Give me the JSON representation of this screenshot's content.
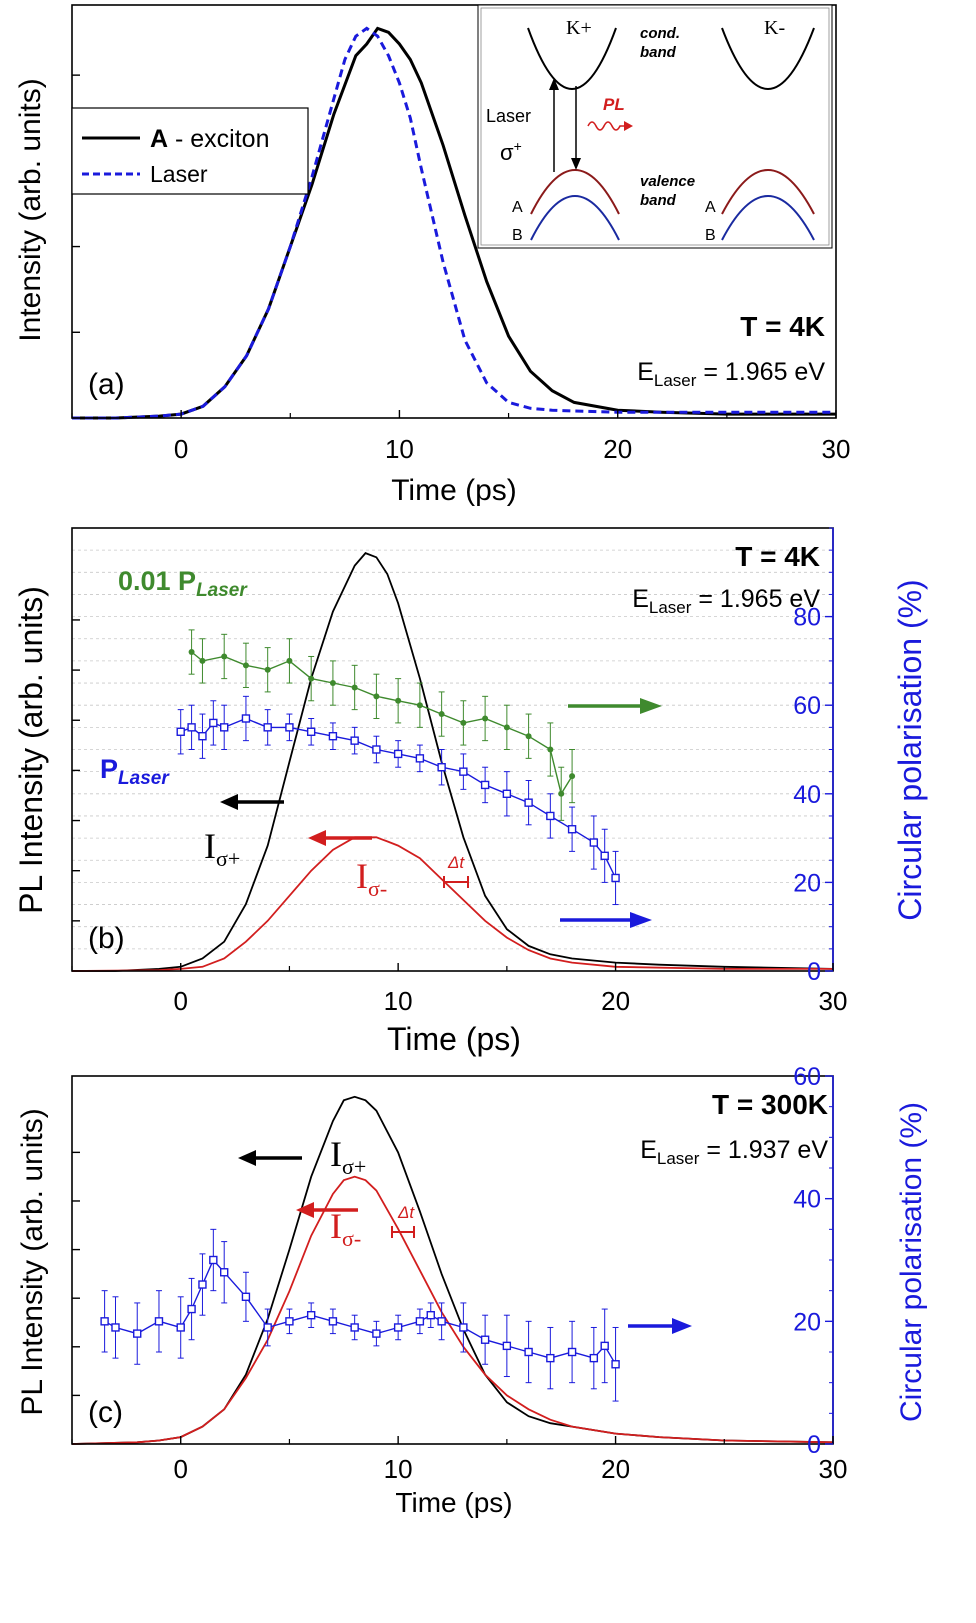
{
  "chart_data": [
    {
      "panel": "a",
      "type": "line",
      "label": "(a)",
      "xlabel": "Time (ps)",
      "ylabel": "Intensity (arb. units)",
      "xlim": [
        -5,
        30
      ],
      "ylim": [
        0,
        1.06
      ],
      "xticks": [
        0,
        10,
        20,
        30
      ],
      "xtick_labels": [
        "0",
        "10",
        "20",
        "30"
      ],
      "temperature": "T = 4K",
      "energy_prefix": "E",
      "energy_sub": "Laser",
      "energy_value": " = 1.965 eV",
      "legend": {
        "items": [
          {
            "bold": "A",
            "text": " - exciton",
            "style": "solid",
            "color": "#000000"
          },
          {
            "bold": "",
            "text": "Laser",
            "style": "dashed",
            "color": "#1a1adc"
          }
        ]
      },
      "series": [
        {
          "name": "A - exciton",
          "color": "#000000",
          "style": "solid",
          "x": [
            -5,
            -3,
            -1,
            0,
            1,
            2,
            3,
            4,
            5,
            6,
            7,
            8,
            8.5,
            9,
            9.5,
            10,
            10.5,
            11,
            12,
            13,
            14,
            15,
            16,
            17,
            18,
            20,
            22,
            25,
            30
          ],
          "y": [
            0.0,
            0.0,
            0.005,
            0.01,
            0.03,
            0.08,
            0.16,
            0.28,
            0.44,
            0.6,
            0.78,
            0.93,
            0.96,
            1.0,
            0.99,
            0.96,
            0.92,
            0.86,
            0.7,
            0.52,
            0.35,
            0.21,
            0.12,
            0.07,
            0.04,
            0.02,
            0.015,
            0.01,
            0.01
          ]
        },
        {
          "name": "Laser",
          "color": "#1a1adc",
          "style": "dashed",
          "x": [
            -5,
            -3,
            -1,
            0,
            1,
            2,
            3,
            4,
            5,
            6,
            7,
            7.5,
            8,
            8.5,
            9,
            9.5,
            10,
            10.5,
            11,
            12,
            13,
            14,
            15,
            16,
            17,
            18,
            20,
            25,
            30
          ],
          "y": [
            0.0,
            0.0,
            0.005,
            0.01,
            0.03,
            0.08,
            0.16,
            0.28,
            0.44,
            0.62,
            0.82,
            0.92,
            0.98,
            1.0,
            0.98,
            0.93,
            0.86,
            0.77,
            0.64,
            0.4,
            0.2,
            0.09,
            0.04,
            0.025,
            0.02,
            0.018,
            0.015,
            0.015,
            0.015
          ]
        }
      ],
      "inset": {
        "k_plus": "K+",
        "k_minus": "K-",
        "cond_band": [
          "cond.",
          "band"
        ],
        "valence_band": [
          "valence",
          "band"
        ],
        "laser": "Laser",
        "sigma": "σ",
        "sigma_sup": "+",
        "pl": "PL",
        "band_a": "A",
        "band_b": "B"
      }
    },
    {
      "panel": "b",
      "type": "line",
      "label": "(b)",
      "xlabel": "Time (ps)",
      "ylabel": "PL Intensity (arb. units)",
      "y2label": "Circular polarisation (%)",
      "xlim": [
        -5,
        30
      ],
      "ylim": [
        0,
        1.06
      ],
      "y2lim": [
        0,
        100
      ],
      "xticks": [
        0,
        10,
        20,
        30
      ],
      "xtick_labels": [
        "0",
        "10",
        "20",
        "30"
      ],
      "y2ticks": [
        0,
        20,
        40,
        60,
        80
      ],
      "y2tick_labels": [
        "0",
        "20",
        "40",
        "60",
        "80"
      ],
      "temperature": "T = 4K",
      "energy_prefix": "E",
      "energy_sub": "Laser",
      "energy_value": " = 1.965 eV",
      "label_green_prefix": "0.01 P",
      "label_green_sub": "Laser",
      "label_blue_prefix": "P",
      "label_blue_sub": "Laser",
      "label_i_plus_main": "I",
      "label_i_plus_sub": "σ+",
      "label_i_minus_main": "I",
      "label_i_minus_sub": "σ-",
      "delta_t": "Δt",
      "series": [
        {
          "name": "I σ+",
          "color": "#000000",
          "axis": "left",
          "x": [
            -5,
            -3,
            -1,
            0,
            1,
            2,
            3,
            4,
            5,
            6,
            7,
            8,
            8.5,
            9,
            9.5,
            10,
            11,
            12,
            13,
            14,
            15,
            16,
            17,
            18,
            20,
            22,
            25,
            30
          ],
          "y": [
            0.0,
            0.0,
            0.005,
            0.01,
            0.03,
            0.07,
            0.16,
            0.3,
            0.5,
            0.7,
            0.86,
            0.97,
            1.0,
            0.99,
            0.95,
            0.88,
            0.7,
            0.5,
            0.32,
            0.18,
            0.1,
            0.06,
            0.04,
            0.03,
            0.02,
            0.015,
            0.01,
            0.005
          ]
        },
        {
          "name": "I σ-",
          "color": "#d21e1e",
          "axis": "left",
          "x": [
            -5,
            -1,
            0,
            1,
            2,
            3,
            4,
            5,
            6,
            7,
            8,
            9,
            9.5,
            10,
            11,
            12,
            13,
            14,
            15,
            16,
            17,
            18,
            20,
            25,
            30
          ],
          "y": [
            0.0,
            0.002,
            0.005,
            0.01,
            0.03,
            0.07,
            0.12,
            0.18,
            0.24,
            0.29,
            0.32,
            0.32,
            0.31,
            0.3,
            0.27,
            0.22,
            0.17,
            0.12,
            0.08,
            0.05,
            0.03,
            0.02,
            0.01,
            0.005,
            0.005
          ]
        },
        {
          "name": "0.01 P Laser",
          "color": "#3f8a2e",
          "axis": "right",
          "marker": "dot",
          "x": [
            0.5,
            1,
            2,
            3,
            4,
            5,
            6,
            7,
            8,
            9,
            10,
            11,
            12,
            13,
            14,
            15,
            16,
            17,
            17.5,
            18
          ],
          "y": [
            72,
            70,
            71,
            69,
            68,
            70,
            66,
            65,
            64,
            62,
            61,
            60,
            58,
            56,
            57,
            55,
            53,
            50,
            40,
            44
          ],
          "err": [
            5,
            5,
            5,
            5,
            5,
            5,
            5,
            5,
            5,
            5,
            5,
            5,
            5,
            5,
            5,
            5,
            5,
            6,
            6,
            6
          ]
        },
        {
          "name": "P Laser",
          "color": "#1a1adc",
          "axis": "right",
          "marker": "square",
          "x": [
            0,
            0.5,
            1,
            1.5,
            2,
            3,
            4,
            5,
            6,
            7,
            8,
            9,
            10,
            11,
            12,
            13,
            14,
            15,
            16,
            17,
            18,
            19,
            19.5,
            20
          ],
          "y": [
            54,
            55,
            53,
            56,
            55,
            57,
            55,
            55,
            54,
            53,
            52,
            50,
            49,
            48,
            46,
            45,
            42,
            40,
            38,
            35,
            32,
            29,
            26,
            21
          ],
          "err": [
            5,
            5,
            5,
            5,
            5,
            5,
            4,
            3,
            3,
            3,
            3,
            3,
            3,
            3,
            4,
            4,
            4,
            5,
            5,
            5,
            5,
            6,
            6,
            6
          ]
        }
      ]
    },
    {
      "panel": "c",
      "type": "line",
      "label": "(c)",
      "xlabel": "Time (ps)",
      "ylabel": "PL Intensity (arb. units)",
      "y2label": "Circular polarisation (%)",
      "xlim": [
        -5,
        30
      ],
      "ylim": [
        0,
        1.06
      ],
      "y2lim": [
        0,
        60
      ],
      "xticks": [
        0,
        10,
        20,
        30
      ],
      "xtick_labels": [
        "0",
        "10",
        "20",
        "30"
      ],
      "y2ticks": [
        0,
        20,
        40,
        60
      ],
      "y2tick_labels": [
        "0",
        "20",
        "40",
        "60"
      ],
      "temperature": "T = 300K",
      "energy_prefix": "E",
      "energy_sub": "Laser",
      "energy_value": " = 1.937 eV",
      "label_i_plus_main": "I",
      "label_i_plus_sub": "σ+",
      "label_i_minus_main": "I",
      "label_i_minus_sub": "σ-",
      "delta_t": "Δt",
      "series": [
        {
          "name": "I σ+",
          "color": "#000000",
          "axis": "left",
          "x": [
            -5,
            -2,
            -1,
            0,
            1,
            2,
            3,
            4,
            5,
            6,
            7,
            7.5,
            8,
            8.5,
            9,
            10,
            11,
            12,
            13,
            14,
            15,
            16,
            17,
            18,
            20,
            22,
            25,
            30
          ],
          "y": [
            0.0,
            0.005,
            0.01,
            0.02,
            0.05,
            0.1,
            0.2,
            0.36,
            0.56,
            0.77,
            0.93,
            0.99,
            1.0,
            0.99,
            0.96,
            0.84,
            0.67,
            0.49,
            0.33,
            0.2,
            0.12,
            0.08,
            0.06,
            0.05,
            0.03,
            0.02,
            0.01,
            0.005
          ]
        },
        {
          "name": "I σ-",
          "color": "#d21e1e",
          "axis": "left",
          "x": [
            -5,
            -2,
            -1,
            0,
            1,
            2,
            3,
            4,
            5,
            6,
            7,
            7.5,
            8,
            8.5,
            9,
            10,
            11,
            12,
            13,
            14,
            15,
            16,
            17,
            18,
            20,
            22,
            25,
            30
          ],
          "y": [
            0.0,
            0.005,
            0.01,
            0.02,
            0.05,
            0.1,
            0.19,
            0.3,
            0.44,
            0.6,
            0.72,
            0.76,
            0.77,
            0.76,
            0.73,
            0.62,
            0.5,
            0.38,
            0.28,
            0.2,
            0.14,
            0.1,
            0.07,
            0.05,
            0.03,
            0.02,
            0.01,
            0.005
          ]
        },
        {
          "name": "P Laser",
          "color": "#1a1adc",
          "axis": "right",
          "marker": "square",
          "x": [
            -3.5,
            -3,
            -2,
            -1,
            0,
            0.5,
            1,
            1.5,
            2,
            3,
            4,
            5,
            6,
            7,
            8,
            9,
            10,
            11,
            11.5,
            12,
            13,
            14,
            15,
            16,
            17,
            18,
            19,
            19.5,
            20
          ],
          "y": [
            20,
            19,
            18,
            20,
            19,
            22,
            26,
            30,
            28,
            24,
            19,
            20,
            21,
            20,
            19,
            18,
            19,
            20,
            21,
            20,
            19,
            17,
            16,
            15,
            14,
            15,
            14,
            16,
            13
          ],
          "err": [
            5,
            5,
            5,
            5,
            5,
            5,
            5,
            5,
            5,
            4,
            3,
            2,
            2,
            2,
            2,
            2,
            2,
            2,
            2,
            3,
            4,
            4,
            5,
            5,
            5,
            5,
            5,
            6,
            6
          ]
        }
      ]
    }
  ]
}
